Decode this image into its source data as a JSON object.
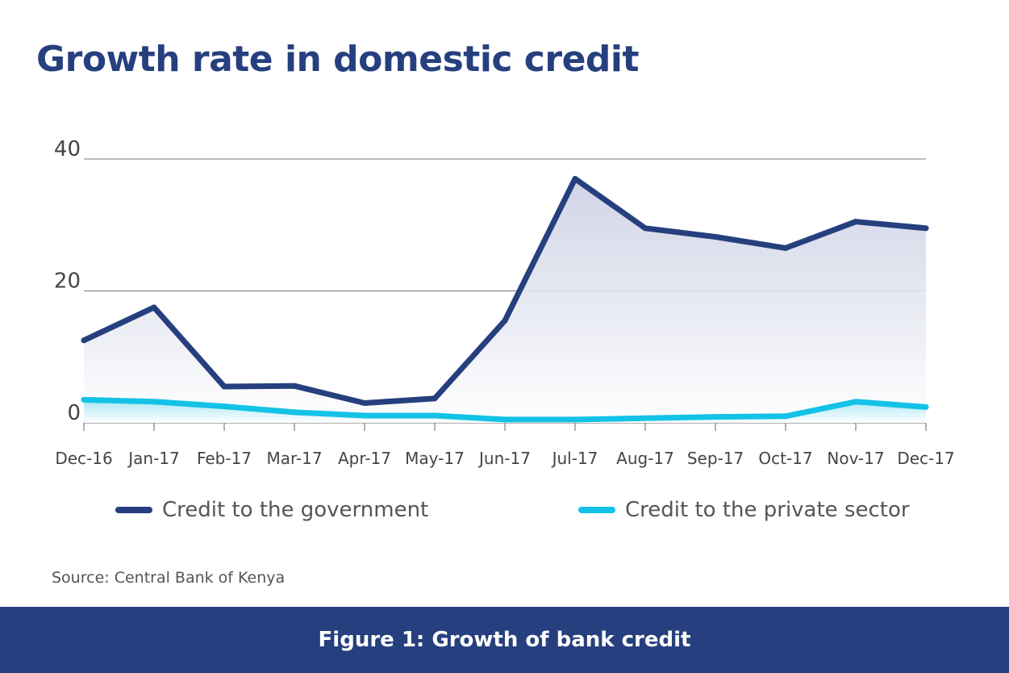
{
  "colors": {
    "title": "#263f7e",
    "government": "#263f7e",
    "private": "#13c2e6",
    "grid": "#555555",
    "footer_bg": "#263f7e"
  },
  "chart_data": {
    "type": "line",
    "title": "Growth rate in domestic credit",
    "categories": [
      "Dec-16",
      "Jan-17",
      "Feb-17",
      "Mar-17",
      "Apr-17",
      "May-17",
      "Jun-17",
      "Jul-17",
      "Aug-17",
      "Sep-17",
      "Oct-17",
      "Nov-17",
      "Dec-17"
    ],
    "series": [
      {
        "name": "Credit to the government",
        "values": [
          12.5,
          17.5,
          5.5,
          5.6,
          3.0,
          3.7,
          15.5,
          37.0,
          29.5,
          28.2,
          26.5,
          30.5,
          29.5
        ]
      },
      {
        "name": "Credit to the private sector",
        "values": [
          3.5,
          3.2,
          2.5,
          1.6,
          1.1,
          1.1,
          0.5,
          0.5,
          0.7,
          0.9,
          1.0,
          3.2,
          2.4
        ]
      }
    ],
    "yticks": [
      0,
      20,
      40
    ],
    "ylim": [
      0,
      40
    ],
    "xlabel": "",
    "ylabel": "",
    "grid": true,
    "legend_position": "bottom"
  },
  "source": "Source: Central Bank of Kenya",
  "footer": "Figure 1: Growth of bank credit"
}
